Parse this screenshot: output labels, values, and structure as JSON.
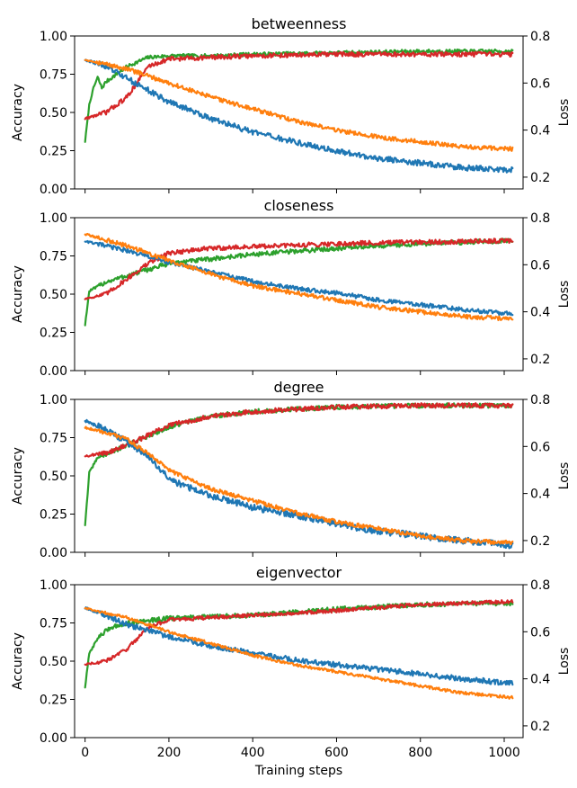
{
  "chart_data": [
    {
      "type": "line",
      "title": "betweenness",
      "xlabel": "",
      "ylabel": "Accuracy",
      "y2label": "Loss",
      "xlim": [
        -25,
        1045
      ],
      "ylim": [
        0,
        1
      ],
      "y2lim": [
        0.15,
        0.8
      ],
      "x_ticks": [
        0,
        200,
        400,
        600,
        800,
        1000
      ],
      "y_ticks": [
        "0.00",
        "0.25",
        "0.50",
        "0.75",
        "1.00"
      ],
      "y2_ticks": [
        "0.2",
        "0.4",
        "0.6",
        "0.8"
      ],
      "series": [
        {
          "axis": "left",
          "color": "#2ca02c",
          "noise": 0.012,
          "points": [
            [
              0,
              0.31
            ],
            [
              10,
              0.55
            ],
            [
              20,
              0.66
            ],
            [
              30,
              0.73
            ],
            [
              40,
              0.66
            ],
            [
              50,
              0.7
            ],
            [
              100,
              0.8
            ],
            [
              150,
              0.86
            ],
            [
              200,
              0.87
            ],
            [
              300,
              0.87
            ],
            [
              400,
              0.88
            ],
            [
              600,
              0.89
            ],
            [
              800,
              0.9
            ],
            [
              1020,
              0.9
            ]
          ]
        },
        {
          "axis": "left",
          "color": "#d62728",
          "noise": 0.015,
          "points": [
            [
              0,
              0.46
            ],
            [
              50,
              0.5
            ],
            [
              100,
              0.6
            ],
            [
              150,
              0.8
            ],
            [
              200,
              0.85
            ],
            [
              300,
              0.86
            ],
            [
              400,
              0.87
            ],
            [
              600,
              0.88
            ],
            [
              800,
              0.88
            ],
            [
              1020,
              0.88
            ]
          ]
        },
        {
          "axis": "right",
          "color": "#1f77b4",
          "noise": 0.012,
          "points": [
            [
              0,
              0.7
            ],
            [
              50,
              0.67
            ],
            [
              100,
              0.62
            ],
            [
              150,
              0.57
            ],
            [
              200,
              0.52
            ],
            [
              300,
              0.45
            ],
            [
              400,
              0.39
            ],
            [
              500,
              0.35
            ],
            [
              600,
              0.31
            ],
            [
              700,
              0.28
            ],
            [
              800,
              0.26
            ],
            [
              900,
              0.24
            ],
            [
              1020,
              0.23
            ]
          ]
        },
        {
          "axis": "right",
          "color": "#ff7f0e",
          "noise": 0.009,
          "points": [
            [
              0,
              0.7
            ],
            [
              100,
              0.66
            ],
            [
              200,
              0.6
            ],
            [
              300,
              0.54
            ],
            [
              400,
              0.49
            ],
            [
              500,
              0.44
            ],
            [
              600,
              0.4
            ],
            [
              700,
              0.37
            ],
            [
              800,
              0.35
            ],
            [
              900,
              0.33
            ],
            [
              1020,
              0.32
            ]
          ]
        }
      ]
    },
    {
      "type": "line",
      "title": "closeness",
      "xlabel": "",
      "ylabel": "Accuracy",
      "y2label": "Loss",
      "xlim": [
        -25,
        1045
      ],
      "ylim": [
        0,
        1
      ],
      "y2lim": [
        0.15,
        0.8
      ],
      "x_ticks": [
        0,
        200,
        400,
        600,
        800,
        1000
      ],
      "y_ticks": [
        "0.00",
        "0.25",
        "0.50",
        "0.75",
        "1.00"
      ],
      "y2_ticks": [
        "0.2",
        "0.4",
        "0.6",
        "0.8"
      ],
      "series": [
        {
          "axis": "left",
          "color": "#2ca02c",
          "noise": 0.015,
          "points": [
            [
              0,
              0.3
            ],
            [
              10,
              0.52
            ],
            [
              50,
              0.58
            ],
            [
              100,
              0.62
            ],
            [
              200,
              0.7
            ],
            [
              400,
              0.76
            ],
            [
              600,
              0.8
            ],
            [
              800,
              0.83
            ],
            [
              1020,
              0.85
            ]
          ]
        },
        {
          "axis": "left",
          "color": "#d62728",
          "noise": 0.015,
          "points": [
            [
              0,
              0.47
            ],
            [
              50,
              0.5
            ],
            [
              100,
              0.6
            ],
            [
              150,
              0.7
            ],
            [
              200,
              0.77
            ],
            [
              300,
              0.8
            ],
            [
              400,
              0.81
            ],
            [
              600,
              0.83
            ],
            [
              800,
              0.84
            ],
            [
              1020,
              0.85
            ]
          ]
        },
        {
          "axis": "right",
          "color": "#1f77b4",
          "noise": 0.009,
          "points": [
            [
              0,
              0.7
            ],
            [
              100,
              0.66
            ],
            [
              200,
              0.61
            ],
            [
              300,
              0.57
            ],
            [
              400,
              0.53
            ],
            [
              500,
              0.5
            ],
            [
              600,
              0.48
            ],
            [
              700,
              0.45
            ],
            [
              800,
              0.43
            ],
            [
              900,
              0.41
            ],
            [
              1020,
              0.39
            ]
          ]
        },
        {
          "axis": "right",
          "color": "#ff7f0e",
          "noise": 0.009,
          "points": [
            [
              0,
              0.73
            ],
            [
              100,
              0.68
            ],
            [
              200,
              0.62
            ],
            [
              300,
              0.56
            ],
            [
              400,
              0.51
            ],
            [
              500,
              0.48
            ],
            [
              600,
              0.45
            ],
            [
              700,
              0.42
            ],
            [
              800,
              0.4
            ],
            [
              900,
              0.38
            ],
            [
              1020,
              0.37
            ]
          ]
        }
      ]
    },
    {
      "type": "line",
      "title": "degree",
      "xlabel": "",
      "ylabel": "Accuracy",
      "y2label": "Loss",
      "xlim": [
        -25,
        1045
      ],
      "ylim": [
        0,
        1
      ],
      "y2lim": [
        0.15,
        0.8
      ],
      "x_ticks": [
        0,
        200,
        400,
        600,
        800,
        1000
      ],
      "y_ticks": [
        "0.00",
        "0.25",
        "0.50",
        "0.75",
        "1.00"
      ],
      "y2_ticks": [
        "0.2",
        "0.4",
        "0.6",
        "0.8"
      ],
      "series": [
        {
          "axis": "left",
          "color": "#2ca02c",
          "noise": 0.015,
          "points": [
            [
              0,
              0.18
            ],
            [
              10,
              0.52
            ],
            [
              30,
              0.62
            ],
            [
              100,
              0.7
            ],
            [
              200,
              0.82
            ],
            [
              300,
              0.89
            ],
            [
              400,
              0.92
            ],
            [
              600,
              0.95
            ],
            [
              800,
              0.96
            ],
            [
              1020,
              0.96
            ]
          ]
        },
        {
          "axis": "left",
          "color": "#d62728",
          "noise": 0.015,
          "points": [
            [
              0,
              0.63
            ],
            [
              50,
              0.65
            ],
            [
              100,
              0.7
            ],
            [
              200,
              0.83
            ],
            [
              300,
              0.89
            ],
            [
              400,
              0.92
            ],
            [
              600,
              0.95
            ],
            [
              800,
              0.96
            ],
            [
              1020,
              0.96
            ]
          ]
        },
        {
          "axis": "right",
          "color": "#1f77b4",
          "noise": 0.014,
          "points": [
            [
              0,
              0.71
            ],
            [
              50,
              0.67
            ],
            [
              100,
              0.62
            ],
            [
              150,
              0.56
            ],
            [
              200,
              0.46
            ],
            [
              300,
              0.39
            ],
            [
              400,
              0.34
            ],
            [
              500,
              0.31
            ],
            [
              600,
              0.27
            ],
            [
              700,
              0.24
            ],
            [
              800,
              0.22
            ],
            [
              900,
              0.2
            ],
            [
              1020,
              0.18
            ]
          ]
        },
        {
          "axis": "right",
          "color": "#ff7f0e",
          "noise": 0.009,
          "points": [
            [
              0,
              0.68
            ],
            [
              50,
              0.66
            ],
            [
              100,
              0.63
            ],
            [
              150,
              0.57
            ],
            [
              200,
              0.5
            ],
            [
              300,
              0.42
            ],
            [
              400,
              0.37
            ],
            [
              500,
              0.32
            ],
            [
              600,
              0.28
            ],
            [
              700,
              0.25
            ],
            [
              800,
              0.22
            ],
            [
              900,
              0.2
            ],
            [
              1020,
              0.19
            ]
          ]
        }
      ]
    },
    {
      "type": "line",
      "title": "eigenvector",
      "xlabel": "Training steps",
      "ylabel": "Accuracy",
      "y2label": "Loss",
      "xlim": [
        -25,
        1045
      ],
      "ylim": [
        0,
        1
      ],
      "y2lim": [
        0.15,
        0.8
      ],
      "x_ticks": [
        0,
        200,
        400,
        600,
        800,
        1000
      ],
      "y_ticks": [
        "0.00",
        "0.25",
        "0.50",
        "0.75",
        "1.00"
      ],
      "y2_ticks": [
        "0.2",
        "0.4",
        "0.6",
        "0.8"
      ],
      "series": [
        {
          "axis": "left",
          "color": "#2ca02c",
          "noise": 0.015,
          "points": [
            [
              0,
              0.33
            ],
            [
              10,
              0.55
            ],
            [
              30,
              0.65
            ],
            [
              60,
              0.72
            ],
            [
              100,
              0.75
            ],
            [
              200,
              0.78
            ],
            [
              400,
              0.8
            ],
            [
              600,
              0.84
            ],
            [
              800,
              0.87
            ],
            [
              1020,
              0.88
            ]
          ]
        },
        {
          "axis": "left",
          "color": "#d62728",
          "noise": 0.012,
          "points": [
            [
              0,
              0.48
            ],
            [
              50,
              0.5
            ],
            [
              100,
              0.58
            ],
            [
              150,
              0.72
            ],
            [
              200,
              0.77
            ],
            [
              400,
              0.8
            ],
            [
              600,
              0.83
            ],
            [
              800,
              0.87
            ],
            [
              1020,
              0.89
            ]
          ]
        },
        {
          "axis": "right",
          "color": "#1f77b4",
          "noise": 0.011,
          "points": [
            [
              0,
              0.7
            ],
            [
              50,
              0.67
            ],
            [
              100,
              0.63
            ],
            [
              200,
              0.58
            ],
            [
              300,
              0.54
            ],
            [
              400,
              0.51
            ],
            [
              500,
              0.48
            ],
            [
              600,
              0.46
            ],
            [
              700,
              0.44
            ],
            [
              800,
              0.42
            ],
            [
              900,
              0.4
            ],
            [
              1020,
              0.38
            ]
          ]
        },
        {
          "axis": "right",
          "color": "#ff7f0e",
          "noise": 0.006,
          "points": [
            [
              0,
              0.7
            ],
            [
              100,
              0.66
            ],
            [
              200,
              0.6
            ],
            [
              300,
              0.55
            ],
            [
              400,
              0.5
            ],
            [
              500,
              0.46
            ],
            [
              600,
              0.43
            ],
            [
              700,
              0.4
            ],
            [
              800,
              0.37
            ],
            [
              900,
              0.34
            ],
            [
              1020,
              0.32
            ]
          ]
        }
      ]
    }
  ]
}
